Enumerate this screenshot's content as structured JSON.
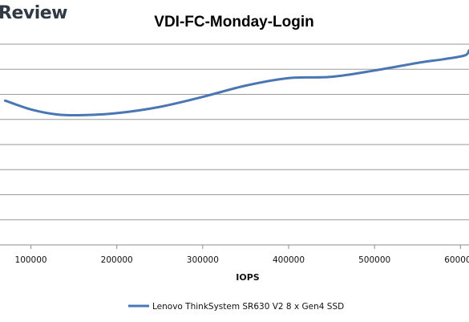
{
  "brand": "Review",
  "chart_data": {
    "type": "line",
    "title": "VDI-FC-Monday-Login",
    "xlabel": "IOPS",
    "ylabel": "",
    "xticks": [
      "100000",
      "200000",
      "300000",
      "400000",
      "500000",
      "600000"
    ],
    "xlim": [
      64000,
      610000
    ],
    "ylim": [
      0,
      8
    ],
    "grid": true,
    "legend_position": "bottom",
    "series": [
      {
        "name": "Lenovo ThinkSystem SR630 V2 8 x Gen4 SSD",
        "color": "#4a76b4",
        "x": [
          70000,
          100000,
          130000,
          160000,
          200000,
          250000,
          300000,
          350000,
          400000,
          450000,
          500000,
          550000,
          580000,
          605000,
          610000
        ],
        "y": [
          5.75,
          5.4,
          5.2,
          5.17,
          5.25,
          5.5,
          5.9,
          6.35,
          6.65,
          6.7,
          6.95,
          7.25,
          7.4,
          7.55,
          7.75
        ]
      }
    ]
  }
}
